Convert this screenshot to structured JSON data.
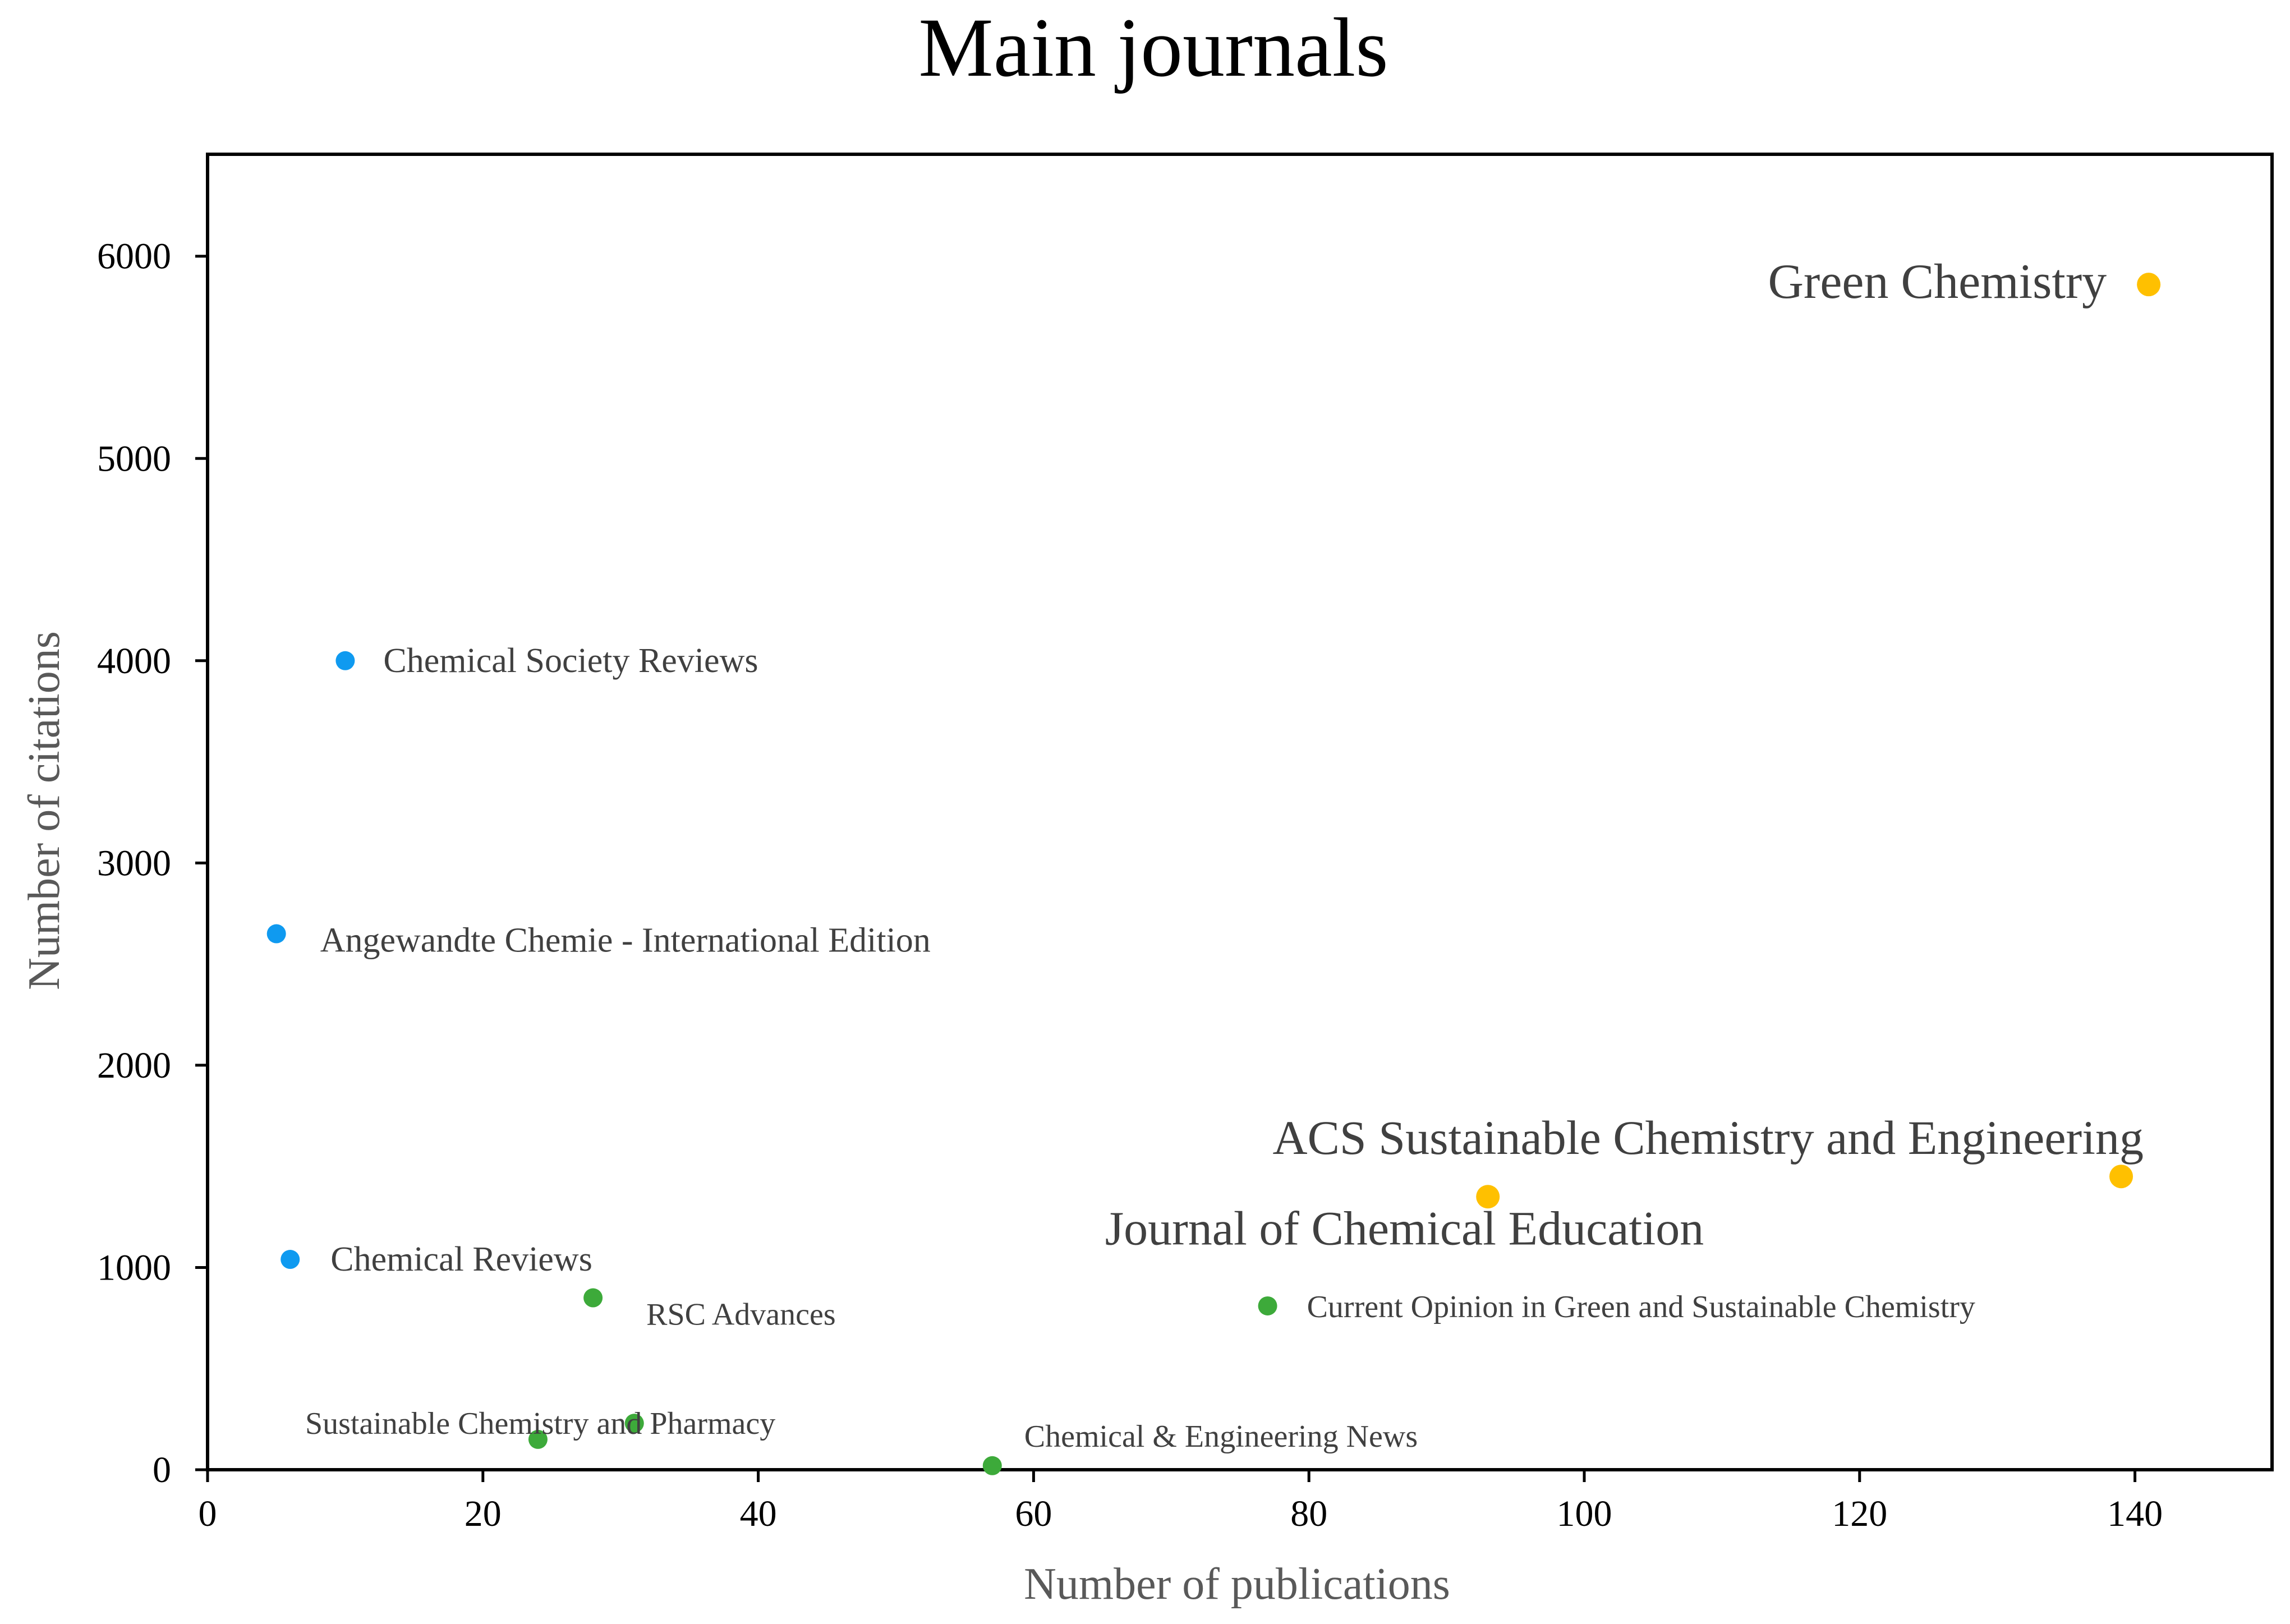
{
  "chart_data": {
    "type": "scatter",
    "title": "Main journals",
    "xlabel": "Number of publications",
    "ylabel": "Number of citations",
    "xlim": [
      0,
      150
    ],
    "ylim": [
      0,
      6500
    ],
    "xticks": [
      0,
      20,
      40,
      60,
      80,
      100,
      120,
      140
    ],
    "yticks": [
      0,
      1000,
      2000,
      3000,
      4000,
      5000,
      6000
    ],
    "grid": false,
    "colors": {
      "blue": "#0F9AF0",
      "green": "#3DAA3A",
      "orange": "#FFC000"
    },
    "points": [
      {
        "label": "Green Chemistry",
        "x": 141,
        "y": 5860,
        "color": "orange"
      },
      {
        "label": "ACS Sustainable Chemistry and Engineering",
        "x": 139,
        "y": 1450,
        "color": "orange"
      },
      {
        "label": "Journal of Chemical Education",
        "x": 93,
        "y": 1350,
        "color": "orange"
      },
      {
        "label": "Chemical Society Reviews",
        "x": 10,
        "y": 4000,
        "color": "blue"
      },
      {
        "label": "Angewandte  Chemie - International Edition",
        "x": 5,
        "y": 2650,
        "color": "blue"
      },
      {
        "label": "Chemical Reviews",
        "x": 6,
        "y": 1040,
        "color": "blue"
      },
      {
        "label": "RSC Advances",
        "x": 28,
        "y": 850,
        "color": "green"
      },
      {
        "label": "Current Opinion  in Green and Sustainable Chemistry",
        "x": 77,
        "y": 810,
        "color": "green"
      },
      {
        "label": "Sustainable Chemistry and Pharmacy",
        "x": 31,
        "y": 230,
        "color": "green"
      },
      {
        "label": "Sustainable Chemistry and Pharmacy",
        "x": 24,
        "y": 150,
        "color": "green"
      },
      {
        "label": "Chemical & Engineering News",
        "x": 57,
        "y": 20,
        "color": "green"
      }
    ],
    "annotations": [
      {
        "text": "Green Chemistry",
        "at_x": 141,
        "at_y": 5860
      },
      {
        "text": "ACS Sustainable Chemistry and Engineering",
        "at_x": 139,
        "at_y": 1450
      },
      {
        "text": "Journal of Chemical Education",
        "at_x": 93,
        "at_y": 1350
      },
      {
        "text": "Chemical Society Reviews",
        "at_x": 10,
        "at_y": 4000
      },
      {
        "text": "Angewandte  Chemie - International Edition",
        "at_x": 5,
        "at_y": 2650
      },
      {
        "text": "Chemical Reviews",
        "at_x": 6,
        "at_y": 1040
      },
      {
        "text": "RSC Advances",
        "at_x": 28,
        "at_y": 850
      },
      {
        "text": "Current Opinion  in Green and Sustainable Chemistry",
        "at_x": 77,
        "at_y": 810
      },
      {
        "text": "Sustainable Chemistry and Pharmacy",
        "at_x": 24,
        "at_y": 150
      },
      {
        "text": "Chemical & Engineering News",
        "at_x": 57,
        "at_y": 20
      }
    ]
  }
}
